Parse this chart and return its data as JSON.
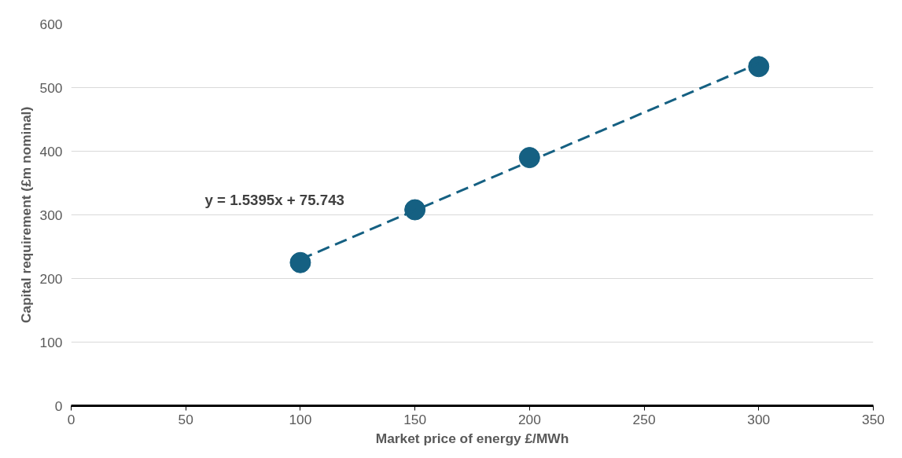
{
  "chart_data": {
    "type": "scatter",
    "xlabel": "Market price of energy £/MWh",
    "ylabel": "Capital requirement (£m nominal)",
    "x": [
      100,
      150,
      200,
      300
    ],
    "series": [
      {
        "color": "#156082",
        "marker": "circle",
        "values": [
          225,
          308,
          390,
          533
        ]
      },
      {
        "type": "line",
        "color": "#156082",
        "line_style": "dashed",
        "x": [
          100,
          300
        ],
        "values": [
          230,
          538
        ]
      }
    ],
    "annotations": [
      "y = 1.5395x + 75.743"
    ],
    "xlim": [
      0,
      350
    ],
    "xticks": [
      0,
      50,
      100,
      150,
      200,
      250,
      300,
      350
    ],
    "ylim": [
      0,
      600
    ],
    "yticks": [
      0,
      100,
      200,
      300,
      400,
      500,
      600
    ],
    "grid": "y"
  }
}
